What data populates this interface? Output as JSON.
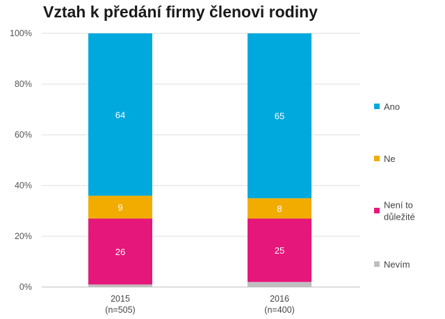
{
  "chart_data": {
    "type": "bar",
    "stacked": true,
    "title": "Vztah k předání firmy členovi rodiny",
    "categories": [
      {
        "year": "2015",
        "n": "(n=505)"
      },
      {
        "year": "2016",
        "n": "(n=400)"
      }
    ],
    "series": [
      {
        "name": "Nevím",
        "color": "#bfbfbf",
        "values": [
          1,
          2
        ]
      },
      {
        "name": "Není to důležité",
        "color": "#e6177a",
        "values": [
          26,
          25
        ]
      },
      {
        "name": "Ne",
        "color": "#f2ac00",
        "values": [
          9,
          8
        ]
      },
      {
        "name": "Ano",
        "color": "#00a9dd",
        "values": [
          64,
          65
        ]
      }
    ],
    "data_labels": [
      {
        "category": 0,
        "series": 1,
        "text": "26"
      },
      {
        "category": 0,
        "series": 2,
        "text": "9"
      },
      {
        "category": 0,
        "series": 3,
        "text": "64"
      },
      {
        "category": 1,
        "series": 1,
        "text": "25"
      },
      {
        "category": 1,
        "series": 2,
        "text": "8"
      },
      {
        "category": 1,
        "series": 3,
        "text": "65"
      }
    ],
    "legend": [
      {
        "series": 3,
        "lines": [
          "Ano"
        ]
      },
      {
        "series": 2,
        "lines": [
          "Ne"
        ]
      },
      {
        "series": 1,
        "lines": [
          "Není to",
          "důležité"
        ]
      },
      {
        "series": 0,
        "lines": [
          "Nevím"
        ]
      }
    ],
    "legend_position": "right",
    "ylim": [
      0,
      100
    ],
    "yticks": [
      0,
      20,
      40,
      60,
      80,
      100
    ],
    "ytick_labels": [
      "0%",
      "20%",
      "40%",
      "60%",
      "80%",
      "100%"
    ],
    "grid": true,
    "xlabel": "",
    "ylabel": ""
  }
}
